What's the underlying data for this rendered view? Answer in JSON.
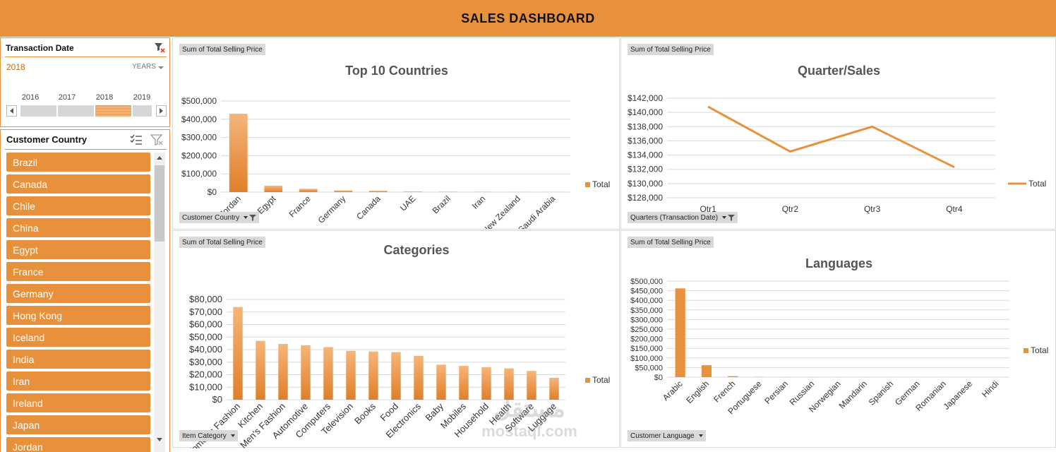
{
  "header": {
    "title": "SALES DASHBOARD"
  },
  "timeline": {
    "title": "Transaction  Date",
    "selected": "2018",
    "level": "YEARS",
    "years": [
      "2016",
      "2017",
      "2018",
      "2019"
    ],
    "selected_index": 2
  },
  "country_slicer": {
    "title": "Customer Country",
    "items": [
      "Brazil",
      "Canada",
      "Chile",
      "China",
      "Egypt",
      "France",
      "Germany",
      "Hong Kong",
      "Iceland",
      "India",
      "Iran",
      "Ireland",
      "Japan",
      "Jordan"
    ]
  },
  "panels": {
    "countries": {
      "value_field": "Sum of Total Selling Price",
      "axis_field": "Customer Country",
      "legend": "Total"
    },
    "quarters": {
      "value_field": "Sum of Total Selling Price",
      "axis_field": "Quarters (Transaction Date)",
      "legend": "Total"
    },
    "categories": {
      "value_field": "Sum of Total Selling Price",
      "axis_field": "Item Category",
      "legend": "Total"
    },
    "languages": {
      "value_field": "Sum of Total Selling Price",
      "axis_field": "Customer Language",
      "legend": "Total"
    }
  },
  "colors": {
    "accent": "#E8913C",
    "bar_light": "#F5B57A",
    "bar_dark": "#E07F2A"
  },
  "watermark": {
    "arabic": "مستقل",
    "latin": "mostaql.com"
  },
  "chart_data": [
    {
      "id": "countries",
      "type": "bar",
      "title": "Top 10 Countries",
      "categories": [
        "Jordan",
        "Egypt",
        "France",
        "Germany",
        "Canada",
        "UAE",
        "Brazil",
        "Iran",
        "New Zealand",
        "Saudi Arabia"
      ],
      "series": [
        {
          "name": "Total",
          "values": [
            430000,
            35000,
            18000,
            9000,
            7000,
            3000,
            2000,
            1500,
            1200,
            1000
          ]
        }
      ],
      "yticks": [
        "$0",
        "$100,000",
        "$200,000",
        "$300,000",
        "$400,000",
        "$500,000"
      ],
      "ylim": [
        0,
        500000
      ],
      "legend": "right",
      "grid": true
    },
    {
      "id": "quarters",
      "type": "line",
      "title": "Quarter/Sales",
      "categories": [
        "Qtr1",
        "Qtr2",
        "Qtr3",
        "Qtr4"
      ],
      "series": [
        {
          "name": "Total",
          "values": [
            140800,
            134500,
            138000,
            132300
          ]
        }
      ],
      "yticks": [
        "$128,000",
        "$130,000",
        "$132,000",
        "$134,000",
        "$136,000",
        "$138,000",
        "$140,000",
        "$142,000"
      ],
      "ylim": [
        128000,
        142000
      ],
      "legend": "right",
      "grid": true
    },
    {
      "id": "categories",
      "type": "bar",
      "title": "Categories",
      "categories": [
        "Women's Fashion",
        "Kitchen",
        "Men's Fashion",
        "Automotive",
        "Computers",
        "Television",
        "Books",
        "Food",
        "Electronics",
        "Baby",
        "Mobiles",
        "Household",
        "Health",
        "Software",
        "Luggage"
      ],
      "series": [
        {
          "name": "Total",
          "values": [
            74000,
            47000,
            44500,
            43500,
            42000,
            39000,
            38500,
            38000,
            35000,
            28000,
            27000,
            26000,
            25000,
            23000,
            17500
          ]
        }
      ],
      "yticks": [
        "$0",
        "$10,000",
        "$20,000",
        "$30,000",
        "$40,000",
        "$50,000",
        "$60,000",
        "$70,000",
        "$80,000"
      ],
      "ylim": [
        0,
        80000
      ],
      "legend": "right",
      "grid": true
    },
    {
      "id": "languages",
      "type": "bar",
      "title": "Languages",
      "categories": [
        "Arabic",
        "English",
        "French",
        "Portuguese",
        "Persian",
        "Russian",
        "Norwegian",
        "Mandarin",
        "Spanish",
        "German",
        "Romanian",
        "Japanese",
        "Hindi"
      ],
      "series": [
        {
          "name": "Total",
          "values": [
            462000,
            62000,
            5000,
            1000,
            800,
            700,
            600,
            500,
            400,
            300,
            200,
            150,
            100
          ]
        }
      ],
      "yticks": [
        "$0",
        "$50,000",
        "$100,000",
        "$150,000",
        "$200,000",
        "$250,000",
        "$300,000",
        "$350,000",
        "$400,000",
        "$450,000",
        "$500,000"
      ],
      "ylim": [
        0,
        500000
      ],
      "legend": "right",
      "grid": true
    }
  ]
}
